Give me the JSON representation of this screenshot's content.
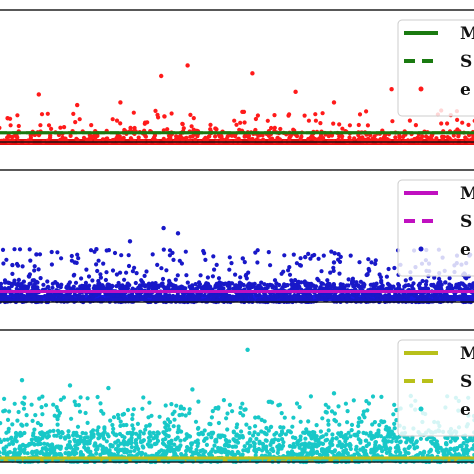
{
  "chart_data": [
    {
      "type": "scatter",
      "title": "",
      "xlabel": "",
      "ylabel": "",
      "grid": false,
      "legend_placement": "right",
      "legend_entries": [
        "M",
        "S",
        "e"
      ],
      "colors": {
        "mean": "#1a7a10",
        "std": "#1a7a10",
        "error": "#ff1a1a",
        "baseline": "#e01010"
      },
      "xlim": [
        0,
        1000
      ],
      "ylim": [
        0,
        100
      ],
      "mean_value": 7,
      "std_value": 7,
      "baseline_value": 0,
      "bulk": {
        "count": 380,
        "y_min": 0,
        "y_max": 8
      },
      "sparse": {
        "count": 120,
        "y_min": 8,
        "y_max": 24
      },
      "outliers": [
        {
          "x": 340,
          "y": 50
        },
        {
          "x": 395,
          "y": 58
        },
        {
          "x": 530,
          "y": 52
        },
        {
          "x": 620,
          "y": 38
        },
        {
          "x": 820,
          "y": 40
        },
        {
          "x": 255,
          "y": 30
        },
        {
          "x": 85,
          "y": 36
        },
        {
          "x": 165,
          "y": 28
        },
        {
          "x": 700,
          "y": 30
        },
        {
          "x": 20,
          "y": 18
        }
      ],
      "seed": 11
    },
    {
      "type": "scatter",
      "title": "",
      "xlabel": "",
      "ylabel": "",
      "grid": false,
      "legend_placement": "right",
      "legend_entries": [
        "M",
        "S",
        "e"
      ],
      "colors": {
        "mean": "#c010c0",
        "std": "#c010c0",
        "error": "#1818c8",
        "baseline": "#1818e0"
      },
      "xlim": [
        0,
        1000
      ],
      "ylim": [
        0,
        100
      ],
      "mean_value": 8,
      "std_value": 8,
      "baseline_value": 3,
      "bulk": {
        "count": 1500,
        "y_min": 0,
        "y_max": 14
      },
      "sparse": {
        "count": 260,
        "y_min": 14,
        "y_max": 40
      },
      "outliers": [
        {
          "x": 345,
          "y": 56
        },
        {
          "x": 275,
          "y": 46
        },
        {
          "x": 375,
          "y": 52
        },
        {
          "x": 80,
          "y": 36
        },
        {
          "x": 205,
          "y": 40
        },
        {
          "x": 510,
          "y": 33
        },
        {
          "x": 640,
          "y": 34
        },
        {
          "x": 700,
          "y": 30
        },
        {
          "x": 30,
          "y": 28
        },
        {
          "x": 160,
          "y": 30
        }
      ],
      "seed": 23
    },
    {
      "type": "scatter",
      "title": "",
      "xlabel": "",
      "ylabel": "",
      "grid": false,
      "legend_placement": "right",
      "legend_entries": [
        "M",
        "S",
        "e"
      ],
      "colors": {
        "mean": "#b8c01a",
        "std": "#b8c01a",
        "error": "#18c8c8",
        "baseline": "#b8c01a"
      },
      "xlim": [
        0,
        1000
      ],
      "ylim": [
        0,
        100
      ],
      "mean_value": 3,
      "std_value": 3,
      "baseline_value": 2,
      "bulk": {
        "count": 1300,
        "y_min": 0,
        "y_max": 22
      },
      "sparse": {
        "count": 320,
        "y_min": 22,
        "y_max": 50
      },
      "outliers": [
        {
          "x": 520,
          "y": 85
        },
        {
          "x": 50,
          "y": 62
        },
        {
          "x": 230,
          "y": 56
        },
        {
          "x": 405,
          "y": 55
        },
        {
          "x": 700,
          "y": 52
        },
        {
          "x": 150,
          "y": 58
        },
        {
          "x": 860,
          "y": 50
        }
      ],
      "seed": 37
    }
  ]
}
